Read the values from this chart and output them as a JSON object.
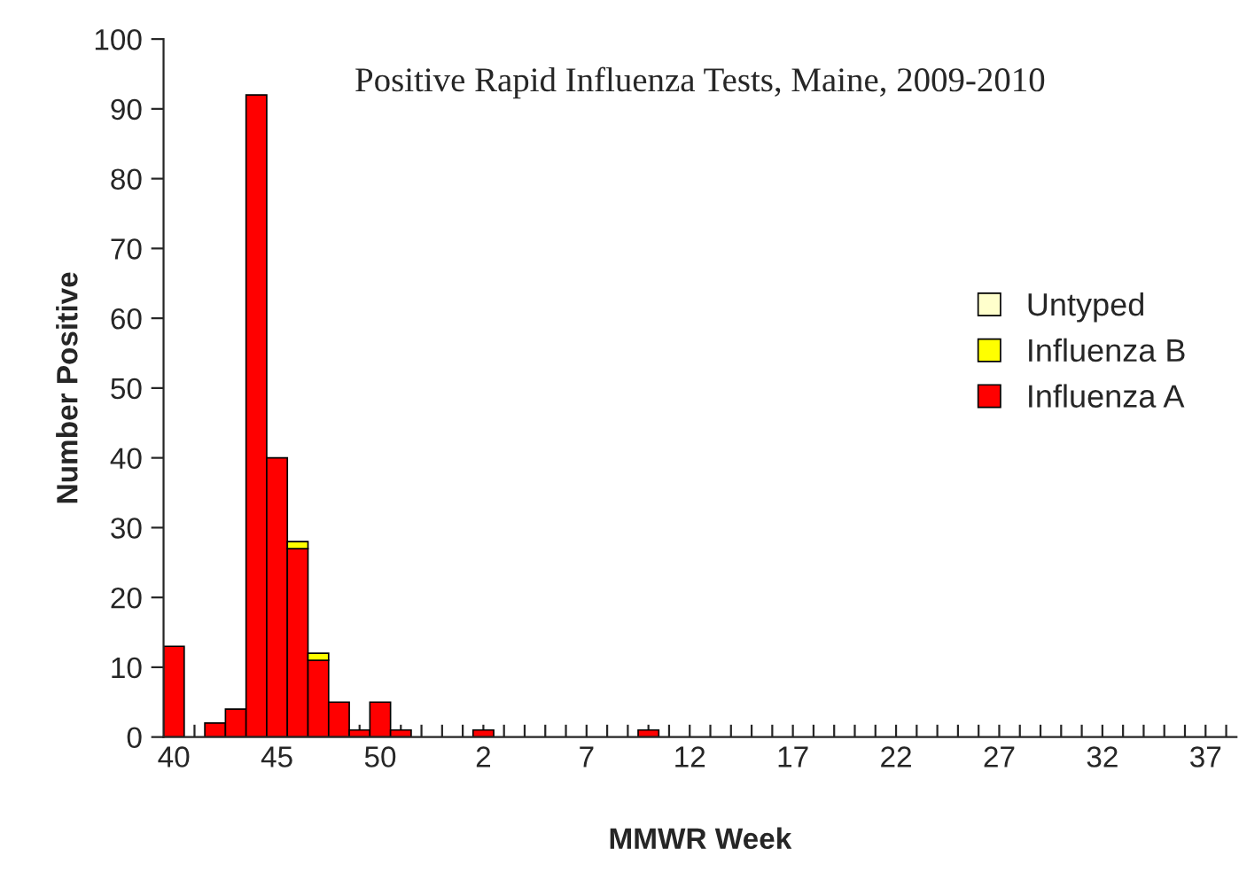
{
  "chart_data": {
    "type": "bar",
    "stacked": true,
    "title": "Positive Rapid Influenza Tests, Maine, 2009-2010",
    "xlabel": "MMWR Week",
    "ylabel": "Number Positive",
    "categories": [
      "40",
      null,
      null,
      null,
      null,
      "45",
      null,
      null,
      null,
      null,
      "50",
      null,
      null,
      null,
      null,
      "2",
      null,
      null,
      null,
      null,
      "7",
      null,
      null,
      null,
      null,
      "12",
      null,
      null,
      null,
      null,
      "17",
      null,
      null,
      null,
      null,
      "22",
      null,
      null,
      null,
      null,
      "27",
      null,
      null,
      null,
      null,
      "32",
      null,
      null,
      null,
      null,
      "37",
      null
    ],
    "series": [
      {
        "name": "Influenza A",
        "color": "#ff0000",
        "values": [
          13,
          0,
          2,
          4,
          92,
          40,
          27,
          11,
          5,
          1,
          5,
          1,
          0,
          0,
          0,
          1,
          0,
          0,
          0,
          0,
          0,
          0,
          0,
          1,
          0,
          0,
          0,
          0,
          0,
          0,
          0,
          0,
          0,
          0,
          0,
          0,
          0,
          0,
          0,
          0,
          0,
          0,
          0,
          0,
          0,
          0,
          0,
          0,
          0,
          0,
          0,
          0
        ]
      },
      {
        "name": "Influenza B",
        "color": "#ffff00",
        "values": [
          0,
          0,
          0,
          0,
          0,
          0,
          1,
          1,
          0,
          0,
          0,
          0,
          0,
          0,
          0,
          0,
          0,
          0,
          0,
          0,
          0,
          0,
          0,
          0,
          0,
          0,
          0,
          0,
          0,
          0,
          0,
          0,
          0,
          0,
          0,
          0,
          0,
          0,
          0,
          0,
          0,
          0,
          0,
          0,
          0,
          0,
          0,
          0,
          0,
          0,
          0,
          0
        ]
      },
      {
        "name": "Untyped",
        "color": "#ffffcc",
        "values": [
          0,
          0,
          0,
          0,
          0,
          0,
          0,
          0,
          0,
          0,
          0,
          0,
          0,
          0,
          0,
          0,
          0,
          0,
          0,
          0,
          0,
          0,
          0,
          0,
          0,
          0,
          0,
          0,
          0,
          0,
          0,
          0,
          0,
          0,
          0,
          0,
          0,
          0,
          0,
          0,
          0,
          0,
          0,
          0,
          0,
          0,
          0,
          0,
          0,
          0,
          0,
          0
        ]
      }
    ],
    "ylim": [
      0,
      100
    ],
    "yticks": [
      0,
      10,
      20,
      30,
      40,
      50,
      60,
      70,
      80,
      90,
      100
    ],
    "grid": false,
    "legend": "right"
  }
}
